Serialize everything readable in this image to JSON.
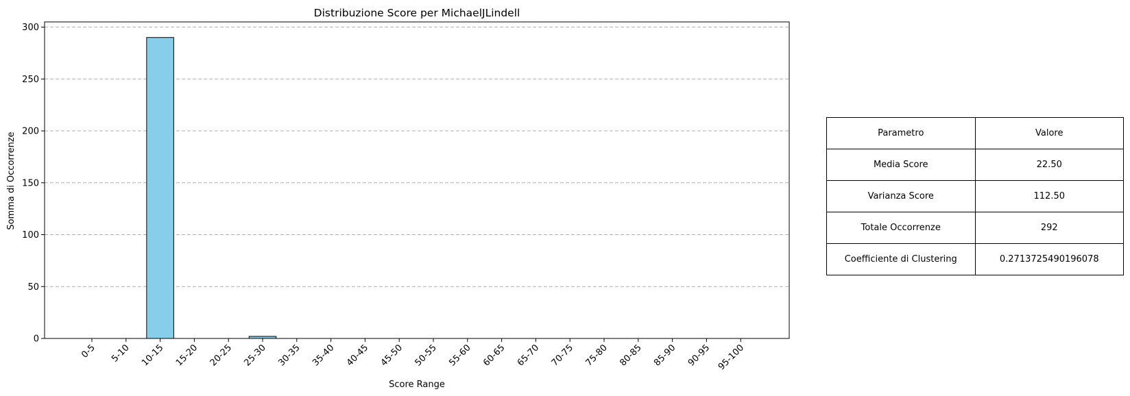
{
  "chart_data": {
    "type": "bar",
    "title": "Distribuzione Score per MichaelJLindell",
    "xlabel": "Score Range",
    "ylabel": "Somma di Occorrenze",
    "categories": [
      "0-5",
      "5-10",
      "10-15",
      "15-20",
      "20-25",
      "25-30",
      "30-35",
      "35-40",
      "40-45",
      "45-50",
      "50-55",
      "55-60",
      "60-65",
      "65-70",
      "70-75",
      "75-80",
      "80-85",
      "85-90",
      "90-95",
      "95-100"
    ],
    "values": [
      0,
      0,
      290,
      0,
      0,
      2,
      0,
      0,
      0,
      0,
      0,
      0,
      0,
      0,
      0,
      0,
      0,
      0,
      0,
      0
    ],
    "ylim": [
      0,
      305
    ],
    "yticks": [
      0,
      50,
      100,
      150,
      200,
      250,
      300
    ],
    "grid": "y-dashed",
    "bar_color": "#87ceeb",
    "edge_color": "#000000",
    "xtick_rotation": 45
  },
  "table": {
    "header": [
      "Parametro",
      "Valore"
    ],
    "rows": [
      [
        "Media Score",
        "22.50"
      ],
      [
        "Varianza Score",
        "112.50"
      ],
      [
        "Totale Occorrenze",
        "292"
      ],
      [
        "Coefficiente di Clustering",
        "0.2713725490196078"
      ]
    ]
  }
}
